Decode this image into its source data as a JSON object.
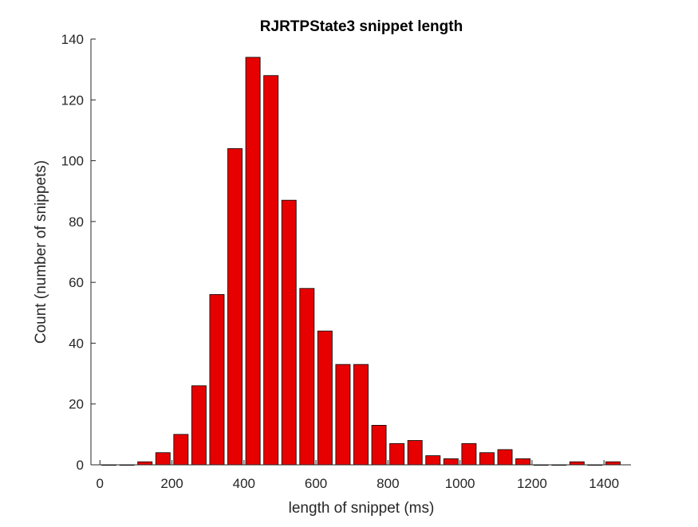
{
  "chart_data": {
    "type": "bar",
    "title": "RJRTPState3 snippet length",
    "xlabel": "length of snippet (ms)",
    "ylabel": "Count (number of snippets)",
    "xlim": [
      -25,
      1475
    ],
    "ylim": [
      0,
      140
    ],
    "xticks": [
      0,
      200,
      400,
      600,
      800,
      1000,
      1200,
      1400
    ],
    "yticks": [
      0,
      20,
      40,
      60,
      80,
      100,
      120,
      140
    ],
    "bin_width": 50,
    "x": [
      25,
      75,
      125,
      175,
      225,
      275,
      325,
      375,
      425,
      475,
      525,
      575,
      625,
      675,
      725,
      775,
      825,
      875,
      925,
      975,
      1025,
      1075,
      1125,
      1175,
      1225,
      1275,
      1325,
      1375,
      1425
    ],
    "values": [
      0,
      0,
      1,
      4,
      10,
      26,
      56,
      104,
      134,
      128,
      87,
      58,
      44,
      33,
      33,
      13,
      7,
      8,
      3,
      2,
      7,
      4,
      5,
      2,
      0,
      0,
      1,
      0,
      1
    ],
    "bar_color": "#e60000",
    "edge_color": "#000000",
    "grid": false
  }
}
